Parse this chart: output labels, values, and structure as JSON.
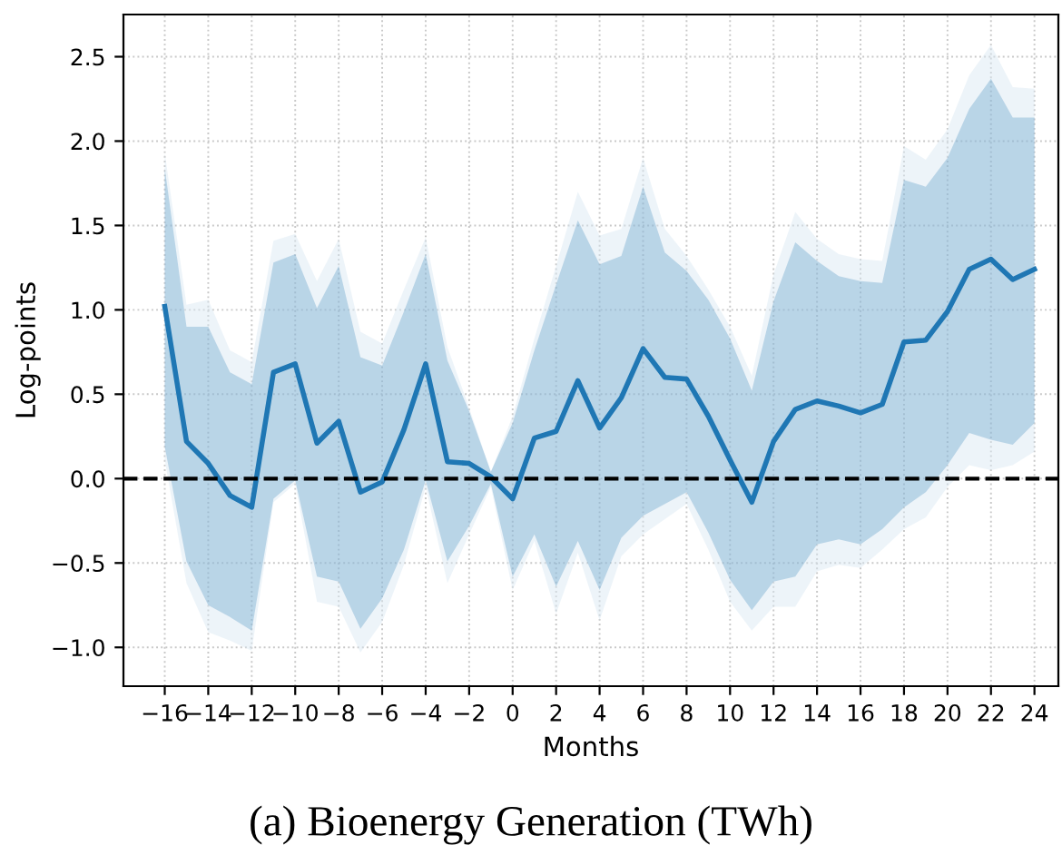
{
  "chart_data": {
    "type": "line",
    "title": "(a) Bioenergy Generation (TWh)",
    "xlabel": "Months",
    "ylabel": "Log-points",
    "xlim": [
      -17.9,
      25.1
    ],
    "ylim": [
      -1.23,
      2.75
    ],
    "xticks": [
      {
        "value": -16,
        "label": "−16"
      },
      {
        "value": -14,
        "label": "−14"
      },
      {
        "value": -12,
        "label": "−12"
      },
      {
        "value": -10,
        "label": "−10"
      },
      {
        "value": -8,
        "label": "−8"
      },
      {
        "value": -6,
        "label": "−6"
      },
      {
        "value": -4,
        "label": "−4"
      },
      {
        "value": -2,
        "label": "−2"
      },
      0,
      2,
      4,
      6,
      8,
      10,
      12,
      14,
      16,
      18,
      20,
      22,
      24
    ],
    "yticks": [
      {
        "value": -1.0,
        "label": "−1.0"
      },
      {
        "value": -0.5,
        "label": "−0.5"
      },
      {
        "value": 0.0,
        "label": "0.0"
      },
      {
        "value": 0.5,
        "label": "0.5"
      },
      {
        "value": 1.0,
        "label": "1.0"
      },
      {
        "value": 1.5,
        "label": "1.5"
      },
      {
        "value": 2.0,
        "label": "2.0"
      },
      {
        "value": 2.5,
        "label": "2.5"
      }
    ],
    "grid": true,
    "legend": false,
    "marker": "none",
    "line_style": "solid",
    "x": [
      -16,
      -15,
      -14,
      -13,
      -12,
      -11,
      -10,
      -9,
      -8,
      -7,
      -6,
      -5,
      -4,
      -3,
      -2,
      -1,
      0,
      1,
      2,
      3,
      4,
      5,
      6,
      7,
      8,
      9,
      10,
      11,
      12,
      13,
      14,
      15,
      16,
      17,
      18,
      19,
      20,
      21,
      22,
      23,
      24
    ],
    "series": [
      {
        "color": "#1f77b4",
        "values": [
          1.02,
          0.22,
          0.09,
          -0.1,
          -0.17,
          0.63,
          0.68,
          0.21,
          0.34,
          -0.08,
          -0.02,
          0.29,
          0.68,
          0.1,
          0.09,
          0.01,
          -0.12,
          0.24,
          0.28,
          0.58,
          0.3,
          0.48,
          0.77,
          0.6,
          0.59,
          0.37,
          0.11,
          -0.14,
          0.22,
          0.41,
          0.46,
          0.43,
          0.39,
          0.44,
          0.81,
          0.82,
          0.99,
          1.24,
          1.3,
          1.18,
          1.24
        ],
        "lower": [
          0.19,
          -0.49,
          -0.75,
          -0.82,
          -0.9,
          -0.12,
          -0.01,
          -0.58,
          -0.61,
          -0.89,
          -0.71,
          -0.42,
          -0.01,
          -0.49,
          -0.28,
          -0.03,
          -0.58,
          -0.33,
          -0.64,
          -0.37,
          -0.66,
          -0.35,
          -0.22,
          -0.15,
          -0.08,
          -0.32,
          -0.6,
          -0.78,
          -0.61,
          -0.58,
          -0.39,
          -0.36,
          -0.39,
          -0.3,
          -0.17,
          -0.08,
          0.08,
          0.27,
          0.23,
          0.2,
          0.33
        ],
        "upper": [
          1.84,
          0.9,
          0.9,
          0.63,
          0.56,
          1.28,
          1.33,
          1.01,
          1.26,
          0.72,
          0.67,
          0.99,
          1.33,
          0.7,
          0.4,
          0.04,
          0.33,
          0.76,
          1.15,
          1.53,
          1.27,
          1.32,
          1.73,
          1.34,
          1.23,
          1.06,
          0.83,
          0.52,
          1.05,
          1.4,
          1.29,
          1.2,
          1.17,
          1.16,
          1.77,
          1.73,
          1.9,
          2.19,
          2.37,
          2.14,
          2.14
        ]
      },
      {
        "color": "#d6e6f2",
        "values": [
          null,
          null,
          null,
          null,
          null,
          null,
          null,
          null,
          null,
          null,
          null,
          null,
          null,
          null,
          null,
          null,
          null,
          null,
          null,
          null,
          null,
          null,
          null,
          null,
          null,
          null,
          null,
          null,
          null,
          null,
          null,
          null,
          null,
          null,
          null,
          null,
          null,
          null,
          null,
          null,
          null
        ],
        "lower": [
          0.11,
          -0.62,
          -0.91,
          -0.96,
          -1.02,
          -0.14,
          -0.03,
          -0.73,
          -0.76,
          -1.03,
          -0.85,
          -0.51,
          -0.05,
          -0.62,
          -0.33,
          -0.05,
          -0.66,
          -0.37,
          -0.8,
          -0.44,
          -0.84,
          -0.46,
          -0.33,
          -0.24,
          -0.15,
          -0.42,
          -0.73,
          -0.9,
          -0.76,
          -0.76,
          -0.55,
          -0.51,
          -0.53,
          -0.42,
          -0.3,
          -0.23,
          -0.05,
          0.08,
          0.05,
          0.08,
          0.16
        ],
        "upper": [
          1.93,
          1.03,
          1.06,
          0.76,
          0.69,
          1.41,
          1.45,
          1.17,
          1.42,
          0.87,
          0.8,
          1.12,
          1.43,
          0.78,
          0.42,
          0.04,
          0.37,
          0.83,
          1.26,
          1.7,
          1.44,
          1.48,
          1.9,
          1.48,
          1.32,
          1.12,
          0.9,
          0.61,
          1.21,
          1.58,
          1.42,
          1.33,
          1.3,
          1.29,
          1.97,
          1.89,
          2.07,
          2.39,
          2.57,
          2.32,
          2.31
        ]
      }
    ],
    "ref_lines": [
      {
        "axis": "y",
        "value": 0,
        "color": "#000000",
        "line_style": "dashed"
      }
    ]
  }
}
